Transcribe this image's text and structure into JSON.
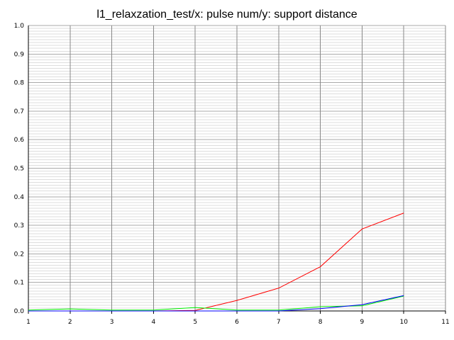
{
  "chart_data": {
    "type": "line",
    "title": "l1_relaxzation_test/x: pulse num/y: support distance",
    "xlabel": "",
    "ylabel": "",
    "xlim": [
      1,
      11
    ],
    "ylim": [
      0,
      1.0
    ],
    "x_ticks": [
      "1",
      "2",
      "3",
      "4",
      "5",
      "6",
      "7",
      "8",
      "9",
      "10",
      "11"
    ],
    "y_ticks": [
      "0.0",
      "0.1",
      "0.2",
      "0.3",
      "0.4",
      "0.5",
      "0.6",
      "0.7",
      "0.8",
      "0.9",
      "1.0"
    ],
    "grid": true,
    "legend": "none",
    "x": [
      1,
      2,
      3,
      4,
      5,
      6,
      7,
      8,
      9,
      10
    ],
    "series": [
      {
        "color": "#ff0000",
        "values": [
          0.0,
          0.0,
          0.0,
          0.0,
          0.002,
          0.037,
          0.08,
          0.155,
          0.287,
          0.343
        ]
      },
      {
        "color": "#00ee00",
        "values": [
          0.003,
          0.007,
          0.003,
          0.003,
          0.012,
          0.003,
          0.003,
          0.015,
          0.018,
          0.052
        ]
      },
      {
        "color": "#0000ff",
        "values": [
          0.0,
          0.0,
          0.0,
          0.0,
          0.0,
          0.0,
          0.0,
          0.008,
          0.022,
          0.054
        ]
      }
    ]
  }
}
